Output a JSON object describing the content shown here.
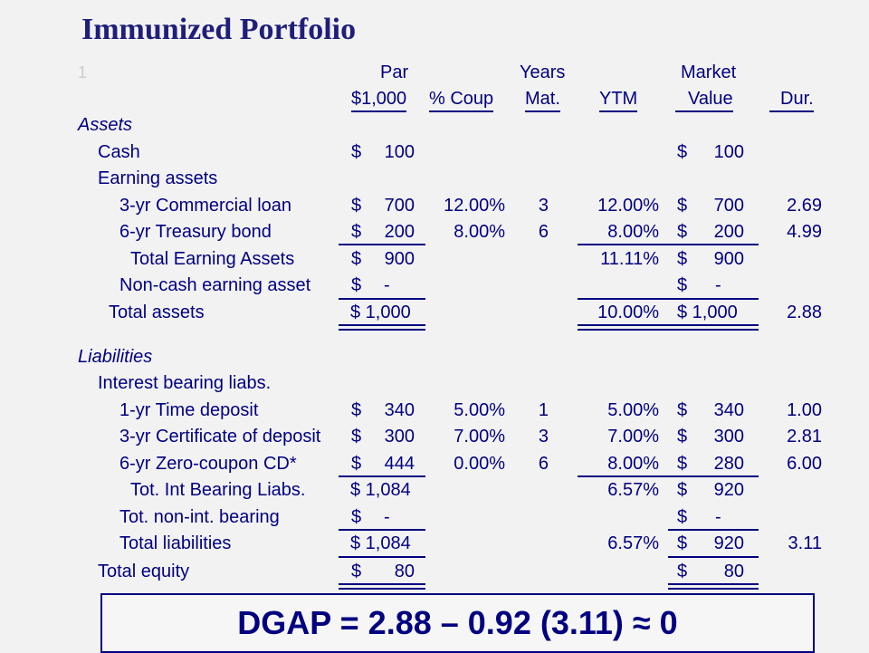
{
  "title": "Immunized Portfolio",
  "ghost_mark": "1",
  "header": {
    "line1": {
      "par": "Par",
      "years": "Years",
      "market": "Market"
    },
    "line2": {
      "par": "$1,000",
      "coup": "% Coup",
      "mat": "Mat.",
      "ytm": "YTM",
      "value": "Value",
      "dur": "Dur."
    }
  },
  "assets": {
    "heading": "Assets",
    "cash": {
      "label": "Cash",
      "par_dollar": "$",
      "par": "100",
      "value_dollar": "$",
      "value": "100"
    },
    "earning_label": "Earning assets",
    "loan": {
      "label": "3-yr Commercial loan",
      "par_dollar": "$",
      "par": "700",
      "coup": "12.00%",
      "mat": "3",
      "ytm": "12.00%",
      "value_dollar": "$",
      "value": "700",
      "dur": "2.69"
    },
    "bond": {
      "label": "6-yr Treasury bond",
      "par_dollar": "$",
      "par": "200",
      "coup": "8.00%",
      "mat": "6",
      "ytm": "8.00%",
      "value_dollar": "$",
      "value": "200",
      "dur": "4.99"
    },
    "total_earning": {
      "label": "Total Earning Assets",
      "par_dollar": "$",
      "par": "900",
      "ytm": "11.11%",
      "value_dollar": "$",
      "value": "900"
    },
    "noncash": {
      "label": "Non-cash earning asset",
      "par_dollar": "$",
      "par": "-",
      "value_dollar": "$",
      "value": "-"
    },
    "total": {
      "label": "Total assets",
      "par": "$ 1,000",
      "ytm": "10.00%",
      "value": "$ 1,000",
      "dur": "2.88"
    }
  },
  "liabilities": {
    "heading": "Liabilities",
    "ib_label": "Interest bearing liabs.",
    "td": {
      "label": "1-yr Time deposit",
      "par_dollar": "$",
      "par": "340",
      "coup": "5.00%",
      "mat": "1",
      "ytm": "5.00%",
      "value_dollar": "$",
      "value": "340",
      "dur": "1.00"
    },
    "cd": {
      "label": "3-yr Certificate of deposit",
      "par_dollar": "$",
      "par": "300",
      "coup": "7.00%",
      "mat": "3",
      "ytm": "7.00%",
      "value_dollar": "$",
      "value": "300",
      "dur": "2.81"
    },
    "zero": {
      "label": "6-yr Zero-coupon CD*",
      "par_dollar": "$",
      "par": "444",
      "coup": "0.00%",
      "mat": "6",
      "ytm": "8.00%",
      "value_dollar": "$",
      "value": "280",
      "dur": "6.00"
    },
    "tot_ib": {
      "label": "Tot. Int Bearing Liabs.",
      "par": "$ 1,084",
      "ytm": "6.57%",
      "value_dollar": "$",
      "value": "920"
    },
    "non_int": {
      "label": "Tot. non-int. bearing",
      "par_dollar": "$",
      "par": "-",
      "value_dollar": "$",
      "value": "-"
    },
    "total": {
      "label": "Total liabilities",
      "par": "$ 1,084",
      "ytm": "6.57%",
      "value_dollar": "$",
      "value": "920",
      "dur": "3.11"
    }
  },
  "equity": {
    "label": "Total equity",
    "par_dollar": "$",
    "par": "80",
    "value_dollar": "$",
    "value": "80"
  },
  "dgap": "DGAP = 2.88 – 0.92 (3.11) ≈ 0",
  "colors": {
    "text": "#000080",
    "title": "#1f1f7a",
    "background": "#f2f2f2"
  }
}
